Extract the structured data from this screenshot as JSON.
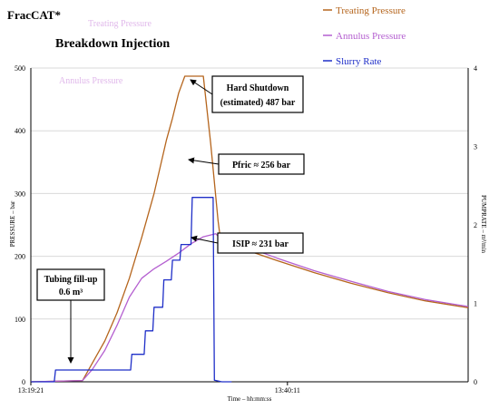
{
  "header": {
    "brand": "FracCAT*",
    "title": "Breakdown Injection",
    "ghost_1": "Treating Pressure",
    "ghost_2": "Annulus Pressure"
  },
  "colors": {
    "treating": "#b5651d",
    "annulus": "#b45fd0",
    "slurry": "#1f2fc8",
    "grid": "#d9d9d9"
  },
  "chart_data": {
    "type": "line",
    "xlabel": "Time – hh:mm:ss",
    "ylabel_left": "PRESSURE – bar",
    "ylabel_right": "PUMPRATE – m³/min",
    "x_ticks": [
      "13:19:21",
      "13:40:11"
    ],
    "x_tick_minutes": [
      0,
      20.83
    ],
    "xlim_minutes": [
      0,
      35.5
    ],
    "ylim_left": [
      0,
      500
    ],
    "yticks_left": [
      0,
      100,
      200,
      300,
      400,
      500
    ],
    "ylim_right": [
      0,
      4
    ],
    "yticks_right": [
      0,
      1,
      2,
      3,
      4
    ],
    "legend": [
      "Treating Pressure",
      "Annulus Pressure",
      "Slurry Rate"
    ],
    "series": [
      {
        "name": "Treating Pressure",
        "axis": "left",
        "x": [
          0,
          4.2,
          5.0,
          6.0,
          7.0,
          8.0,
          9.0,
          10.0,
          11.0,
          11.5,
          12.0,
          12.5,
          13.0,
          13.5,
          14.0,
          14.6,
          15.2,
          15.5,
          15.9,
          16.5,
          17.5,
          20,
          23,
          26,
          29,
          32,
          35.5
        ],
        "y": [
          0,
          2,
          30,
          65,
          110,
          165,
          230,
          300,
          385,
          420,
          460,
          487,
          487,
          487,
          487,
          380,
          256,
          210,
          228,
          218,
          210,
          193,
          174,
          157,
          142,
          129,
          118
        ]
      },
      {
        "name": "Annulus Pressure",
        "axis": "left",
        "x": [
          0,
          4.2,
          5.0,
          6.0,
          7.0,
          8.0,
          9.0,
          10.0,
          11.0,
          12.0,
          13.0,
          14.0,
          15.0,
          15.5,
          15.9,
          16.5,
          17.5,
          20,
          23,
          26,
          29,
          32,
          35.5
        ],
        "y": [
          0,
          2,
          20,
          50,
          90,
          135,
          165,
          180,
          192,
          205,
          220,
          231,
          236,
          226,
          232,
          225,
          215,
          197,
          177,
          160,
          144,
          131,
          120
        ]
      },
      {
        "name": "Slurry Rate",
        "axis": "right",
        "x": [
          0,
          1.9,
          2.0,
          3.8,
          4.0,
          8.1,
          8.2,
          9.2,
          9.3,
          9.9,
          10.0,
          10.7,
          10.8,
          11.4,
          11.5,
          12.1,
          12.2,
          13.0,
          13.1,
          14.8,
          14.9,
          15.5,
          16.3
        ],
        "y": [
          0,
          0,
          0.15,
          0.15,
          0.15,
          0.15,
          0.35,
          0.35,
          0.65,
          0.65,
          0.95,
          0.95,
          1.3,
          1.3,
          1.55,
          1.55,
          1.75,
          1.75,
          2.35,
          2.35,
          0.02,
          0,
          0
        ]
      }
    ],
    "annotations": [
      {
        "id": "shutdown",
        "text": "Hard Shutdown",
        "text2": "(estimated) 487 bar"
      },
      {
        "id": "pfric",
        "text": "Pfric ≈ 256 bar"
      },
      {
        "id": "isip",
        "text": "ISIP ≈ 231 bar"
      },
      {
        "id": "fillup",
        "text": "Tubing fill-up",
        "text2": "0.6 m³"
      }
    ],
    "grid": true,
    "legend_position": "top-right"
  }
}
